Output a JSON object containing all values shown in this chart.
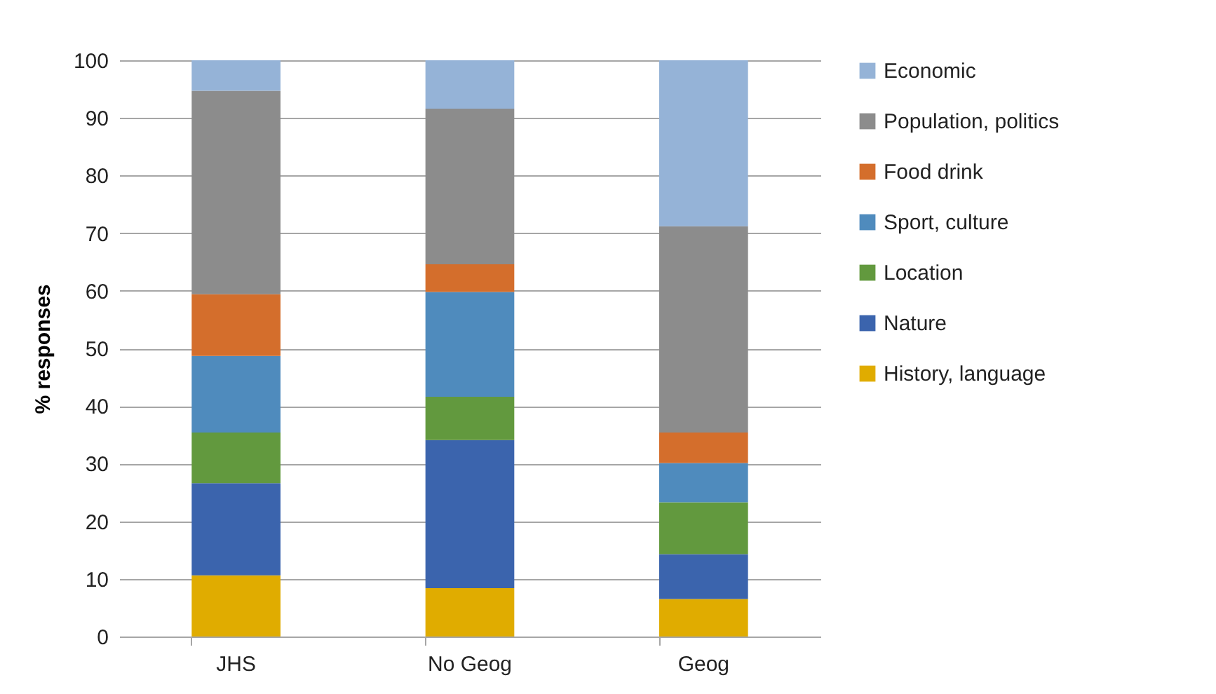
{
  "chart_data": {
    "type": "bar",
    "stacked": true,
    "ylabel": "% responses",
    "categories": [
      "JHS",
      "No Geog",
      "Geog"
    ],
    "series": [
      {
        "name": "History, language",
        "color": "#e0ac00",
        "values": [
          10.6,
          8.4,
          6.5
        ]
      },
      {
        "name": "Nature",
        "color": "#3b64ad",
        "values": [
          16.0,
          25.7,
          7.8
        ]
      },
      {
        "name": "Location",
        "color": "#62993e",
        "values": [
          8.8,
          7.5,
          9.0
        ]
      },
      {
        "name": "Sport, culture",
        "color": "#4f8bbd",
        "values": [
          13.3,
          18.2,
          6.8
        ]
      },
      {
        "name": "Food drink",
        "color": "#d46e2c",
        "values": [
          10.7,
          4.8,
          5.3
        ]
      },
      {
        "name": "Population, politics",
        "color": "#8c8c8c",
        "values": [
          35.3,
          27.0,
          35.8
        ]
      },
      {
        "name": "Economic",
        "color": "#95b3d7",
        "values": [
          5.3,
          8.4,
          28.8
        ]
      }
    ],
    "ylim": [
      0,
      100
    ],
    "yticks": [
      0,
      10,
      20,
      30,
      40,
      50,
      60,
      70,
      80,
      90,
      100
    ],
    "grid": "y",
    "legend": "right"
  }
}
